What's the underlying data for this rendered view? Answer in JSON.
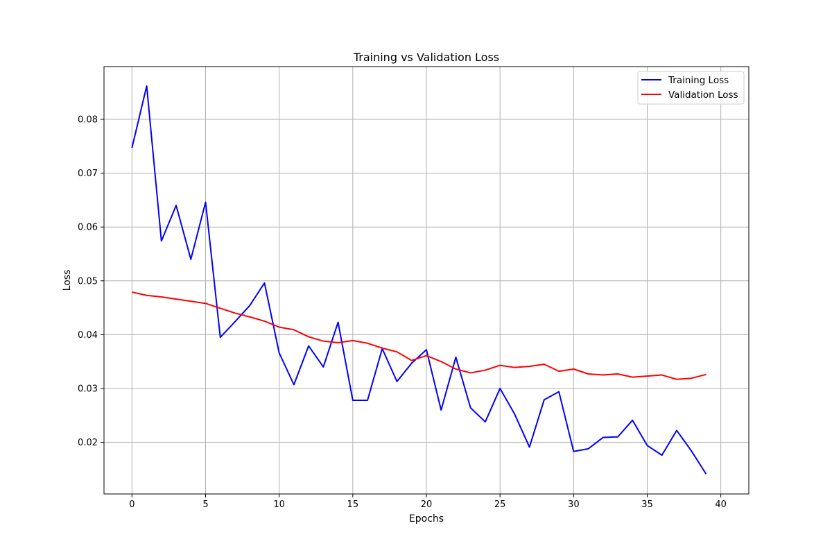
{
  "chart_data": {
    "type": "line",
    "title": "Training vs Validation Loss",
    "xlabel": "Epochs",
    "ylabel": "Loss",
    "xlim": [
      -1.9,
      41.9
    ],
    "ylim": [
      0.0104,
      0.0898
    ],
    "xticks": [
      0,
      5,
      10,
      15,
      20,
      25,
      30,
      35,
      40
    ],
    "yticks": [
      0.02,
      0.03,
      0.04,
      0.05,
      0.06,
      0.07,
      0.08
    ],
    "ytick_labels": [
      "0.02",
      "0.03",
      "0.04",
      "0.05",
      "0.06",
      "0.07",
      "0.08"
    ],
    "grid": true,
    "legend_position": "top-right",
    "x": [
      0,
      1,
      2,
      3,
      4,
      5,
      6,
      7,
      8,
      9,
      10,
      11,
      12,
      13,
      14,
      15,
      16,
      17,
      18,
      19,
      20,
      21,
      22,
      23,
      24,
      25,
      26,
      27,
      28,
      29,
      30,
      31,
      32,
      33,
      34,
      35,
      36,
      37,
      38,
      39
    ],
    "series": [
      {
        "name": "Training Loss",
        "color": "#0000ff",
        "values": [
          0.0747,
          0.0862,
          0.0574,
          0.064,
          0.054,
          0.0646,
          0.0395,
          0.0424,
          0.0454,
          0.0496,
          0.0366,
          0.0307,
          0.0379,
          0.034,
          0.0423,
          0.0278,
          0.0278,
          0.0374,
          0.0313,
          0.0347,
          0.0372,
          0.026,
          0.0358,
          0.0264,
          0.0238,
          0.03,
          0.0252,
          0.0191,
          0.0279,
          0.0294,
          0.0183,
          0.0188,
          0.0209,
          0.021,
          0.0241,
          0.0194,
          0.0176,
          0.0222,
          0.0184,
          0.0141
        ]
      },
      {
        "name": "Validation Loss",
        "color": "#ff0000",
        "values": [
          0.0479,
          0.0473,
          0.047,
          0.0466,
          0.0462,
          0.0458,
          0.0449,
          0.044,
          0.0433,
          0.0425,
          0.0414,
          0.0409,
          0.0396,
          0.0388,
          0.0385,
          0.0389,
          0.0384,
          0.0375,
          0.0368,
          0.0352,
          0.0361,
          0.035,
          0.0336,
          0.0329,
          0.0334,
          0.0343,
          0.0339,
          0.0341,
          0.0345,
          0.0332,
          0.0336,
          0.0327,
          0.0325,
          0.0327,
          0.0321,
          0.0323,
          0.0325,
          0.0317,
          0.0319,
          0.0326
        ]
      }
    ]
  }
}
